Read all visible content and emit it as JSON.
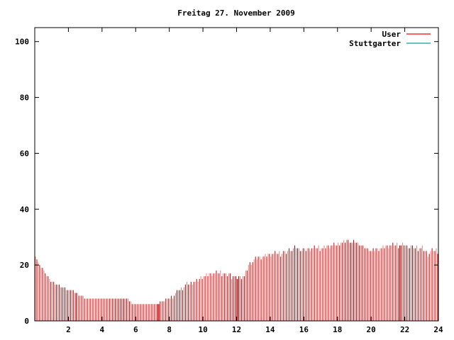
{
  "chart_data": {
    "type": "bar",
    "title": "Freitag 27. November 2009",
    "xlabel": "",
    "ylabel": "",
    "xlim": [
      0,
      24
    ],
    "ylim": [
      0,
      105
    ],
    "xticks": [
      2,
      4,
      6,
      8,
      10,
      12,
      14,
      16,
      18,
      20,
      22,
      24
    ],
    "yticks": [
      0,
      20,
      40,
      60,
      80,
      100
    ],
    "grid": false,
    "legend_position": "top-right",
    "colors": {
      "User": "#ff0000",
      "Stuttgarter": "#00a0a0",
      "bar": "#cc0000",
      "bar_light": "#e88080"
    },
    "series": [
      {
        "name": "User",
        "values": []
      },
      {
        "name": "Stuttgarter",
        "values": []
      }
    ],
    "bar_profile": [
      [
        0.0,
        23
      ],
      [
        0.2,
        20
      ],
      [
        0.4,
        19
      ],
      [
        0.6,
        17
      ],
      [
        0.8,
        15
      ],
      [
        1.0,
        14
      ],
      [
        1.3,
        13
      ],
      [
        1.7,
        12
      ],
      [
        2.0,
        11
      ],
      [
        2.3,
        10.5
      ],
      [
        2.6,
        9
      ],
      [
        3.0,
        8
      ],
      [
        3.5,
        8
      ],
      [
        4.0,
        8
      ],
      [
        4.5,
        8
      ],
      [
        5.0,
        8
      ],
      [
        5.5,
        7.5
      ],
      [
        5.8,
        6
      ],
      [
        6.5,
        6
      ],
      [
        7.2,
        6
      ],
      [
        7.5,
        7
      ],
      [
        8.0,
        8
      ],
      [
        8.5,
        11
      ],
      [
        9.0,
        13
      ],
      [
        9.5,
        14
      ],
      [
        10.0,
        16
      ],
      [
        10.5,
        17
      ],
      [
        11.0,
        17
      ],
      [
        11.5,
        16.5
      ],
      [
        12.0,
        15.5
      ],
      [
        12.4,
        16
      ],
      [
        12.7,
        20
      ],
      [
        13.0,
        22
      ],
      [
        13.5,
        23
      ],
      [
        14.0,
        24
      ],
      [
        14.5,
        24
      ],
      [
        15.0,
        25
      ],
      [
        15.5,
        26
      ],
      [
        16.0,
        25.5
      ],
      [
        16.5,
        26
      ],
      [
        17.0,
        26
      ],
      [
        17.5,
        27
      ],
      [
        18.0,
        27.5
      ],
      [
        18.5,
        28.5
      ],
      [
        19.0,
        28
      ],
      [
        19.5,
        26.5
      ],
      [
        20.0,
        25
      ],
      [
        20.5,
        26
      ],
      [
        21.0,
        27
      ],
      [
        21.5,
        27
      ],
      [
        22.0,
        27
      ],
      [
        22.5,
        26
      ],
      [
        23.0,
        26
      ],
      [
        23.3,
        24
      ],
      [
        23.6,
        25
      ],
      [
        24.0,
        25
      ]
    ],
    "highlight_x": [
      2.4,
      7.3,
      12.0,
      21.7
    ]
  }
}
